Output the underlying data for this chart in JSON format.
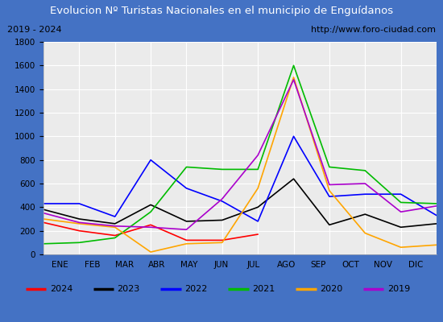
{
  "title": "Evolucion Nº Turistas Nacionales en el municipio de Enguídanos",
  "subtitle_left": "2019 - 2024",
  "subtitle_right": "http://www.foro-ciudad.com",
  "title_bg_color": "#4472c4",
  "title_text_color": "#ffffff",
  "months": [
    "ENE",
    "FEB",
    "MAR",
    "ABR",
    "MAY",
    "JUN",
    "JUL",
    "AGO",
    "SEP",
    "OCT",
    "NOV",
    "DIC"
  ],
  "series": {
    "2024": {
      "color": "#ff0000",
      "data": [
        270,
        200,
        160,
        250,
        120,
        120,
        170,
        null,
        null,
        null,
        null,
        null
      ]
    },
    "2023": {
      "color": "#000000",
      "data": [
        380,
        300,
        260,
        420,
        280,
        290,
        400,
        640,
        250,
        340,
        230,
        260
      ]
    },
    "2022": {
      "color": "#0000ff",
      "data": [
        430,
        430,
        320,
        800,
        560,
        450,
        280,
        1000,
        490,
        510,
        510,
        330
      ]
    },
    "2021": {
      "color": "#00bb00",
      "data": [
        90,
        100,
        140,
        360,
        740,
        720,
        720,
        1600,
        740,
        710,
        440,
        430
      ]
    },
    "2020": {
      "color": "#ffa500",
      "data": [
        300,
        260,
        230,
        20,
        90,
        100,
        560,
        1500,
        540,
        180,
        60,
        80
      ]
    },
    "2019": {
      "color": "#aa00cc",
      "data": [
        350,
        270,
        240,
        230,
        210,
        470,
        840,
        1480,
        590,
        600,
        360,
        410
      ]
    }
  },
  "ylim": [
    0,
    1800
  ],
  "yticks": [
    0,
    200,
    400,
    600,
    800,
    1000,
    1200,
    1400,
    1600,
    1800
  ],
  "legend_order": [
    "2024",
    "2023",
    "2022",
    "2021",
    "2020",
    "2019"
  ],
  "background_color": "#ffffff",
  "plot_bg_color": "#ebebeb",
  "grid_color": "#ffffff",
  "border_color": "#4472c4"
}
